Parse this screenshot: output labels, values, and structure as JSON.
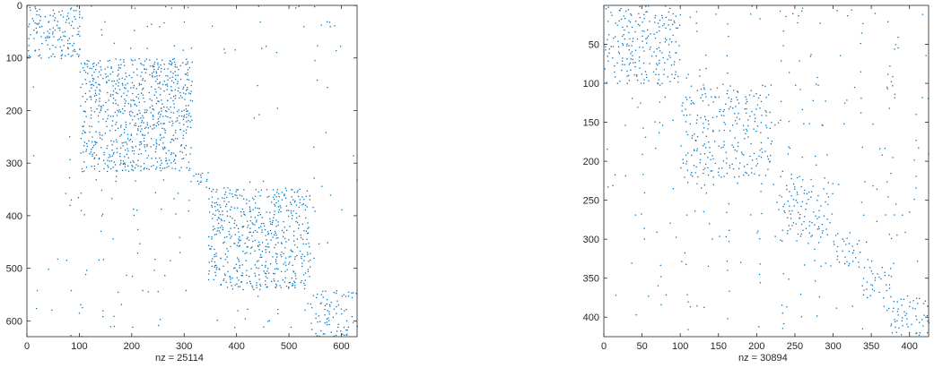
{
  "chart_data": [
    {
      "type": "spy",
      "matrix_size": 630,
      "nonzeros": 25114,
      "xlabel": "nz = 25114",
      "xticks": [
        0,
        100,
        200,
        300,
        400,
        500,
        600
      ],
      "yticks": [
        0,
        100,
        200,
        300,
        400,
        500,
        600
      ],
      "xlim": [
        0,
        630
      ],
      "ylim": [
        630,
        0
      ],
      "color": "#0072BD",
      "blocks": [
        {
          "start": 0,
          "end": 100,
          "density": 0.3
        },
        {
          "start": 100,
          "end": 315,
          "density": 0.4
        },
        {
          "start": 315,
          "end": 345,
          "density": 0.45
        },
        {
          "start": 345,
          "end": 540,
          "density": 0.38
        },
        {
          "start": 540,
          "end": 630,
          "density": 0.22
        }
      ]
    },
    {
      "type": "spy",
      "matrix_size": 425,
      "nonzeros": 30894,
      "xlabel": "nz = 30894",
      "xticks": [
        0,
        50,
        100,
        150,
        200,
        250,
        300,
        350,
        400
      ],
      "yticks": [
        50,
        100,
        150,
        200,
        250,
        300,
        350,
        400
      ],
      "xlim": [
        0,
        425
      ],
      "ylim": [
        425,
        0
      ],
      "color": "#0072BD",
      "blocks": [
        {
          "start": 0,
          "end": 100,
          "density": 0.55
        },
        {
          "start": 100,
          "end": 220,
          "density": 0.5
        },
        {
          "start": 220,
          "end": 300,
          "density": 0.45
        },
        {
          "start": 300,
          "end": 335,
          "density": 0.6
        },
        {
          "start": 335,
          "end": 375,
          "density": 0.55
        },
        {
          "start": 375,
          "end": 425,
          "density": 0.5
        }
      ]
    }
  ]
}
